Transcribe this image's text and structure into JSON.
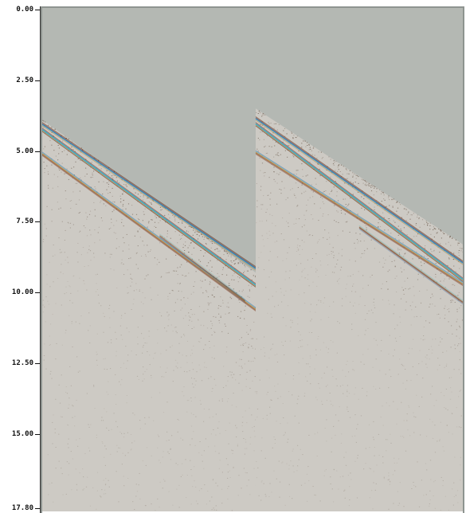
{
  "chart_data": {
    "type": "seismic-gather",
    "title": "",
    "xlabel": "",
    "ylabel": "",
    "ylim": [
      0.0,
      17.8
    ],
    "y_direction": "down",
    "yticks": [
      {
        "value": 0.0,
        "label": "0.00"
      },
      {
        "value": 2.5,
        "label": "2.50"
      },
      {
        "value": 5.0,
        "label": "5.00"
      },
      {
        "value": 7.5,
        "label": "7.50"
      },
      {
        "value": 10.0,
        "label": "10.00"
      },
      {
        "value": 12.5,
        "label": "12.50"
      },
      {
        "value": 15.0,
        "label": "15.00"
      },
      {
        "value": 17.8,
        "label": "17.80"
      }
    ],
    "grid": false,
    "background_color": "#b4b8b3",
    "noise_color": "#cdcac4",
    "event_colors": [
      "#5a2a12",
      "#8a3b1e",
      "#2f6fae",
      "#35b3c8",
      "#c8863a"
    ],
    "panels": [
      {
        "name": "",
        "x_range": [
          0,
          1
        ],
        "first_break": [
          [
            0.0,
            3.9
          ],
          [
            1.0,
            9.3
          ]
        ],
        "events": [
          {
            "start": [
              0.0,
              4.05
            ],
            "end": [
              1.0,
              9.15
            ],
            "strength": 0.9
          },
          {
            "start": [
              0.0,
              4.25
            ],
            "end": [
              1.0,
              9.75
            ],
            "strength": 1.0
          },
          {
            "start": [
              0.0,
              5.1
            ],
            "end": [
              1.0,
              10.6
            ],
            "strength": 0.85
          },
          {
            "start": [
              0.55,
              8.0
            ],
            "end": [
              0.95,
              10.3
            ],
            "strength": 0.45
          }
        ]
      },
      {
        "name": "",
        "x_range": [
          0,
          1
        ],
        "first_break": [
          [
            0.0,
            3.5
          ],
          [
            1.0,
            8.3
          ]
        ],
        "events": [
          {
            "start": [
              0.0,
              3.85
            ],
            "end": [
              1.0,
              8.95
            ],
            "strength": 0.9
          },
          {
            "start": [
              0.0,
              4.05
            ],
            "end": [
              1.0,
              9.55
            ],
            "strength": 1.0
          },
          {
            "start": [
              0.0,
              5.05
            ],
            "end": [
              1.0,
              9.7
            ],
            "strength": 0.85
          },
          {
            "start": [
              0.5,
              7.7
            ],
            "end": [
              1.0,
              10.35
            ],
            "strength": 0.6
          }
        ]
      }
    ]
  }
}
